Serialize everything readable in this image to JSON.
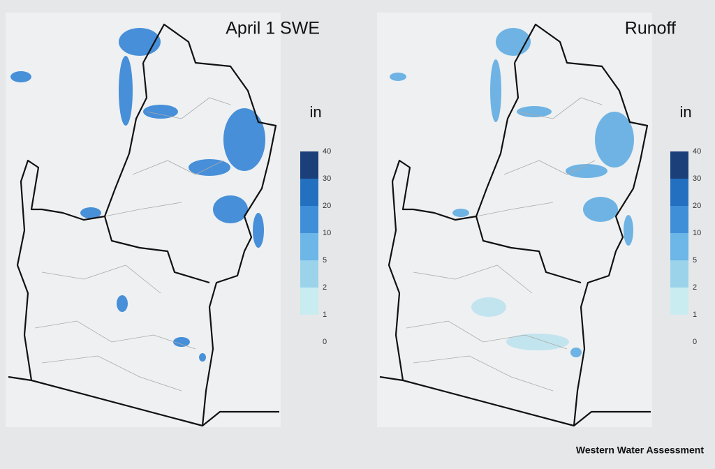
{
  "panels": [
    {
      "title": "April 1 SWE",
      "legend": {
        "unit": "in",
        "ticks": [
          40,
          30,
          20,
          10,
          5,
          2,
          1,
          0
        ],
        "colors": [
          "#1b3f78",
          "#2470c0",
          "#3f8fd8",
          "#6cb6e8",
          "#9ad3ea",
          "#c8ecef"
        ]
      }
    },
    {
      "title": "Runoff",
      "legend": {
        "unit": "in",
        "ticks": [
          40,
          30,
          20,
          10,
          5,
          2,
          1,
          0
        ],
        "colors": [
          "#1b3f78",
          "#2470c0",
          "#3f8fd8",
          "#6cb6e8",
          "#9ad3ea",
          "#c8ecef"
        ]
      }
    }
  ],
  "credit": "Western Water Assessment"
}
